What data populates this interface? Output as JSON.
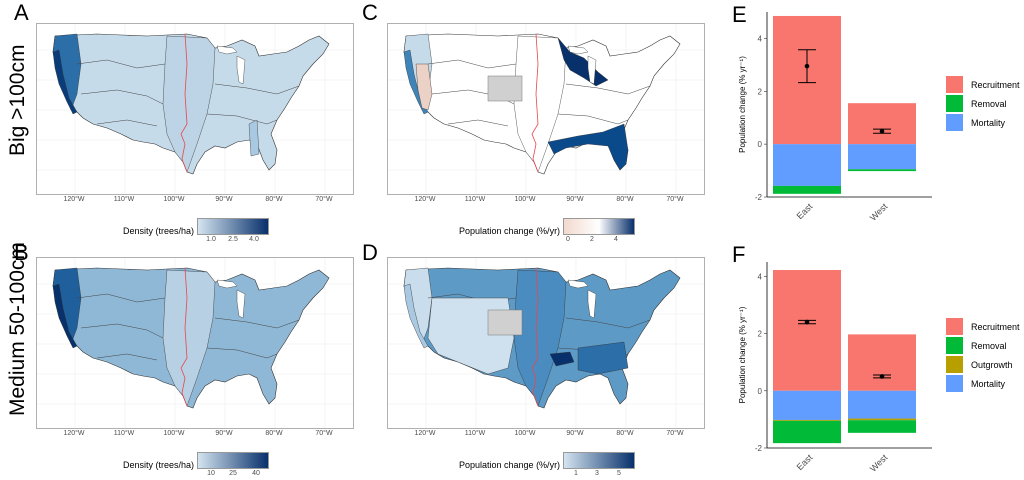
{
  "figure": {
    "row_labels": [
      "Big >100cm",
      "Medium 50-100cm"
    ],
    "panel_letters": [
      "A",
      "B",
      "C",
      "D",
      "E",
      "F"
    ],
    "map_xticks": [
      "120°W",
      "110°W",
      "100°W",
      "90°W",
      "80°W",
      "70°W"
    ],
    "divider_color": "#e8474c",
    "missing_color": "#d0d0d0"
  },
  "maps": {
    "A": {
      "legend_title": "Density (trees/ha)",
      "ticks": [
        "1.0",
        "2.5",
        "4.0"
      ],
      "gradient": [
        "#d4e4f0",
        "#08306b"
      ],
      "state": "mostly light blue, dark Pacific coast"
    },
    "B": {
      "legend_title": "Density (trees/ha)",
      "ticks": [
        "10",
        "25",
        "40"
      ],
      "gradient": [
        "#d4e4f0",
        "#08306b"
      ],
      "state": "medium blues nationwide, darker Pacific coast"
    },
    "C": {
      "legend_title": "Population change (%/yr)",
      "ticks": [
        "0",
        "2",
        "4"
      ],
      "gradient": [
        "#f2d9cd",
        "#ffffff",
        "#08306b"
      ],
      "state": "mostly white; dark blue upper midwest & southeast coastal plain; tan California"
    },
    "D": {
      "legend_title": "Population change (%/yr)",
      "ticks": [
        "1",
        "3",
        "5"
      ],
      "gradient": [
        "#d4e4f0",
        "#08306b"
      ],
      "state": "light west, medium blue east, darkest Arkansas spot"
    }
  },
  "chart_data": [
    {
      "panel": "E",
      "type": "bar",
      "stacked": true,
      "categories": [
        "East",
        "West"
      ],
      "ylabel": "Population change (% yr⁻¹)",
      "ylim": [
        -2,
        5
      ],
      "yticks": [
        -2,
        0,
        2,
        4
      ],
      "series": [
        {
          "name": "Recruitment",
          "color": "#f8766d",
          "values": [
            4.85,
            1.55
          ]
        },
        {
          "name": "Removal",
          "color": "#00ba38",
          "values": [
            -0.3,
            -0.07
          ]
        },
        {
          "name": "Mortality",
          "color": "#619cff",
          "values": [
            -1.58,
            -0.95
          ]
        }
      ],
      "stack_order_negative": [
        "Mortality",
        "Removal"
      ],
      "net_points": [
        {
          "category": "East",
          "mean": 2.95,
          "lower": 2.33,
          "upper": 3.57
        },
        {
          "category": "West",
          "mean": 0.49,
          "lower": 0.41,
          "upper": 0.57
        }
      ],
      "legend": [
        "Recruitment",
        "Removal",
        "Mortality"
      ]
    },
    {
      "panel": "F",
      "type": "bar",
      "stacked": true,
      "categories": [
        "East",
        "West"
      ],
      "ylabel": "Population change (% yr⁻¹)",
      "ylim": [
        -2,
        4.5
      ],
      "yticks": [
        -2,
        0,
        2,
        4
      ],
      "series": [
        {
          "name": "Recruitment",
          "color": "#f8766d",
          "values": [
            4.22,
            1.97
          ]
        },
        {
          "name": "Removal",
          "color": "#00ba38",
          "values": [
            -0.78,
            -0.44
          ]
        },
        {
          "name": "Outgrowth",
          "color": "#b79f00",
          "values": [
            -0.03,
            -0.06
          ]
        },
        {
          "name": "Mortality",
          "color": "#619cff",
          "values": [
            -1.02,
            -0.97
          ]
        }
      ],
      "stack_order_negative": [
        "Mortality",
        "Outgrowth",
        "Removal"
      ],
      "net_points": [
        {
          "category": "East",
          "mean": 2.4,
          "lower": 2.34,
          "upper": 2.46
        },
        {
          "category": "West",
          "mean": 0.5,
          "lower": 0.45,
          "upper": 0.55
        }
      ],
      "legend": [
        "Recruitment",
        "Removal",
        "Outgrowth",
        "Mortality"
      ]
    }
  ]
}
